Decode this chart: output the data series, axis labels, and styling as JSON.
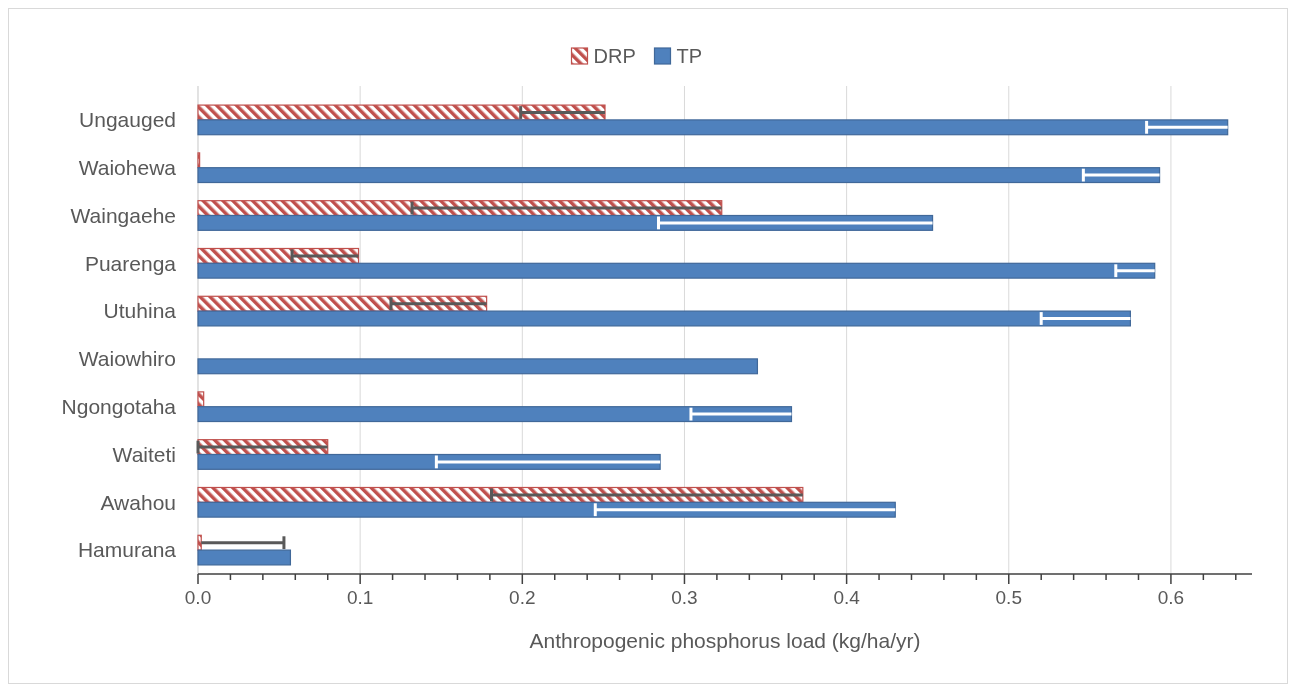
{
  "chart_data": {
    "type": "bar",
    "orientation": "horizontal",
    "xlabel": "Anthropogenic phosphorus load (kg/ha/yr)",
    "categories": [
      "Ungauged",
      "Waiohewa",
      "Waingaehe",
      "Puarenga",
      "Utuhina",
      "Waiowhiro",
      "Ngongotaha",
      "Waiteti",
      "Awahou",
      "Hamurana"
    ],
    "series": [
      {
        "name": "DRP",
        "color": "#c0504d",
        "values": [
          0.251,
          0.001,
          0.323,
          0.099,
          0.178,
          0,
          0.0035,
          0.08,
          0.373,
          0.002
        ],
        "errors": [
          [
            0.199,
            0.251
          ],
          null,
          [
            0.132,
            0.323
          ],
          [
            0.058,
            0.099
          ],
          [
            0.119,
            0.178
          ],
          null,
          null,
          [
            0,
            0.08
          ],
          [
            0.181,
            0.373
          ],
          [
            0.002,
            0.053
          ]
        ]
      },
      {
        "name": "TP",
        "color": "#4f81bd",
        "values": [
          0.635,
          0.593,
          0.453,
          0.59,
          0.575,
          0.345,
          0.366,
          0.285,
          0.43,
          0.057
        ],
        "errors": [
          [
            0.585,
            0.635
          ],
          [
            0.546,
            0.593
          ],
          [
            0.284,
            0.453
          ],
          [
            0.566,
            0.59
          ],
          [
            0.52,
            0.575
          ],
          null,
          [
            0.304,
            0.366
          ],
          [
            0.147,
            0.285
          ],
          [
            0.245,
            0.43
          ],
          null
        ]
      }
    ],
    "xlim": [
      0,
      0.65
    ],
    "xticks": [
      {
        "value": 0,
        "label": "0.0"
      },
      {
        "value": 0.02,
        "label": null
      },
      {
        "value": 0.04,
        "label": null
      },
      {
        "value": 0.06,
        "label": null
      },
      {
        "value": 0.08,
        "label": null
      },
      {
        "value": 0.1,
        "label": "0.1"
      },
      {
        "value": 0.12,
        "label": null
      },
      {
        "value": 0.14,
        "label": null
      },
      {
        "value": 0.16,
        "label": null
      },
      {
        "value": 0.18,
        "label": null
      },
      {
        "value": 0.2,
        "label": "0.2"
      },
      {
        "value": 0.22,
        "label": null
      },
      {
        "value": 0.24,
        "label": null
      },
      {
        "value": 0.26,
        "label": null
      },
      {
        "value": 0.28,
        "label": null
      },
      {
        "value": 0.3,
        "label": "0.3"
      },
      {
        "value": 0.32,
        "label": null
      },
      {
        "value": 0.34,
        "label": null
      },
      {
        "value": 0.36,
        "label": null
      },
      {
        "value": 0.38,
        "label": null
      },
      {
        "value": 0.4,
        "label": "0.4"
      },
      {
        "value": 0.42,
        "label": null
      },
      {
        "value": 0.44,
        "label": null
      },
      {
        "value": 0.46,
        "label": null
      },
      {
        "value": 0.48,
        "label": null
      },
      {
        "value": 0.5,
        "label": "0.5"
      },
      {
        "value": 0.52,
        "label": null
      },
      {
        "value": 0.54,
        "label": null
      },
      {
        "value": 0.56,
        "label": null
      },
      {
        "value": 0.58,
        "label": null
      },
      {
        "value": 0.6,
        "label": "0.6"
      },
      {
        "value": 0.62,
        "label": null
      },
      {
        "value": 0.64,
        "label": null
      }
    ],
    "grid": "x",
    "legend": "top"
  }
}
